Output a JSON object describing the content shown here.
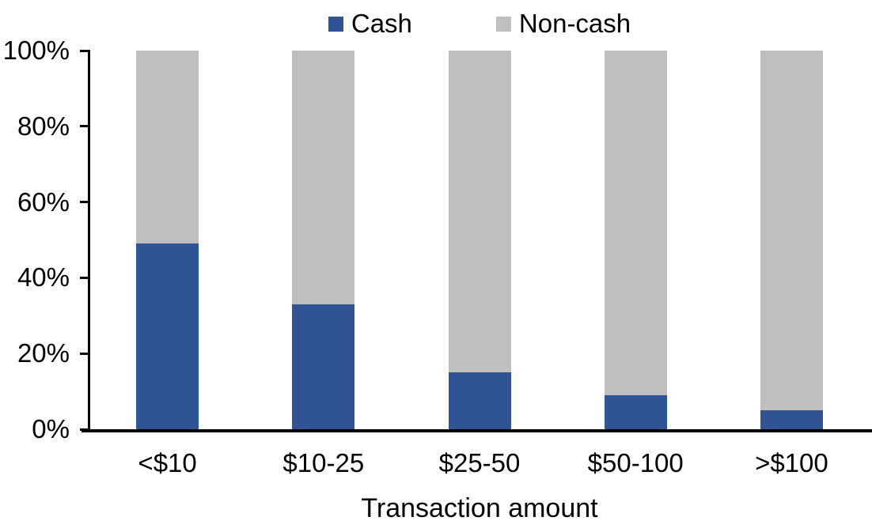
{
  "chart_data": {
    "type": "bar",
    "stacked": true,
    "percent_stacked": true,
    "title": "",
    "xlabel": "Transaction amount",
    "ylabel": "",
    "categories": [
      "<$10",
      "$10-25",
      "$25-50",
      "$50-100",
      ">$100"
    ],
    "series": [
      {
        "name": "Cash",
        "color": "#2F5597",
        "values": [
          49,
          33,
          15,
          9,
          5
        ]
      },
      {
        "name": "Non-cash",
        "color": "#BFBFBF",
        "values": [
          51,
          67,
          85,
          91,
          95
        ]
      }
    ],
    "ylim": [
      0,
      100
    ],
    "ytick_values": [
      0,
      20,
      40,
      60,
      80,
      100
    ],
    "ytick_labels": [
      "0%",
      "20%",
      "40%",
      "60%",
      "80%",
      "100%"
    ],
    "grid": false,
    "legend_position": "top",
    "axis_color": "#000000",
    "text_color": "#000000",
    "background_color": "#FFFFFF"
  }
}
